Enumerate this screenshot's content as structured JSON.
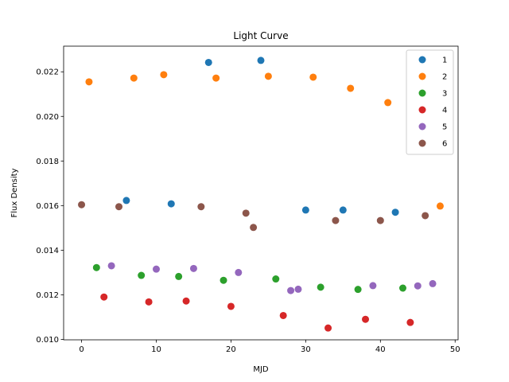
{
  "chart_data": {
    "type": "scatter",
    "title": "Light Curve",
    "xlabel": "MJD",
    "ylabel": "Flux Density",
    "xlim": [
      -2.4,
      50.4
    ],
    "ylim": [
      0.00998,
      0.02315
    ],
    "xticks": [
      0,
      10,
      20,
      30,
      40,
      50
    ],
    "yticks": [
      0.01,
      0.012,
      0.014,
      0.016,
      0.018,
      0.02,
      0.022
    ],
    "ytick_labels": [
      "0.010",
      "0.012",
      "0.014",
      "0.016",
      "0.018",
      "0.020",
      "0.022"
    ],
    "grid": false,
    "legend_position": "top-right",
    "series": [
      {
        "name": "1",
        "color": "#1f77b4",
        "points": [
          [
            6,
            0.01623
          ],
          [
            12,
            0.01608
          ],
          [
            17,
            0.02242
          ],
          [
            24,
            0.02251
          ],
          [
            30,
            0.0158
          ],
          [
            35,
            0.0158
          ],
          [
            42,
            0.0157
          ]
        ]
      },
      {
        "name": "2",
        "color": "#ff7f0e",
        "points": [
          [
            1,
            0.02155
          ],
          [
            7,
            0.02172
          ],
          [
            11,
            0.02187
          ],
          [
            18,
            0.02172
          ],
          [
            25,
            0.0218
          ],
          [
            31,
            0.02176
          ],
          [
            36,
            0.02126
          ],
          [
            41,
            0.02062
          ],
          [
            48,
            0.01598
          ]
        ]
      },
      {
        "name": "3",
        "color": "#2ca02c",
        "points": [
          [
            2,
            0.01322
          ],
          [
            8,
            0.01287
          ],
          [
            13,
            0.01282
          ],
          [
            19,
            0.01265
          ],
          [
            26,
            0.01271
          ],
          [
            32,
            0.01234
          ],
          [
            37,
            0.01224
          ],
          [
            43,
            0.0123
          ]
        ]
      },
      {
        "name": "4",
        "color": "#d62728",
        "points": [
          [
            3,
            0.0119
          ],
          [
            9,
            0.01168
          ],
          [
            14,
            0.01172
          ],
          [
            20,
            0.01148
          ],
          [
            27,
            0.01107
          ],
          [
            33,
            0.01051
          ],
          [
            38,
            0.0109
          ],
          [
            44,
            0.01076
          ]
        ]
      },
      {
        "name": "5",
        "color": "#9467bd",
        "points": [
          [
            4,
            0.0133
          ],
          [
            10,
            0.01315
          ],
          [
            15,
            0.01318
          ],
          [
            21,
            0.013
          ],
          [
            28,
            0.01219
          ],
          [
            29,
            0.01225
          ],
          [
            39,
            0.01241
          ],
          [
            45,
            0.0124
          ],
          [
            47,
            0.0125
          ]
        ]
      },
      {
        "name": "6",
        "color": "#8c564b",
        "points": [
          [
            0,
            0.01604
          ],
          [
            5,
            0.01595
          ],
          [
            16,
            0.01595
          ],
          [
            22,
            0.01566
          ],
          [
            23,
            0.01502
          ],
          [
            34,
            0.01533
          ],
          [
            40,
            0.01533
          ],
          [
            46,
            0.01555
          ]
        ]
      }
    ]
  }
}
